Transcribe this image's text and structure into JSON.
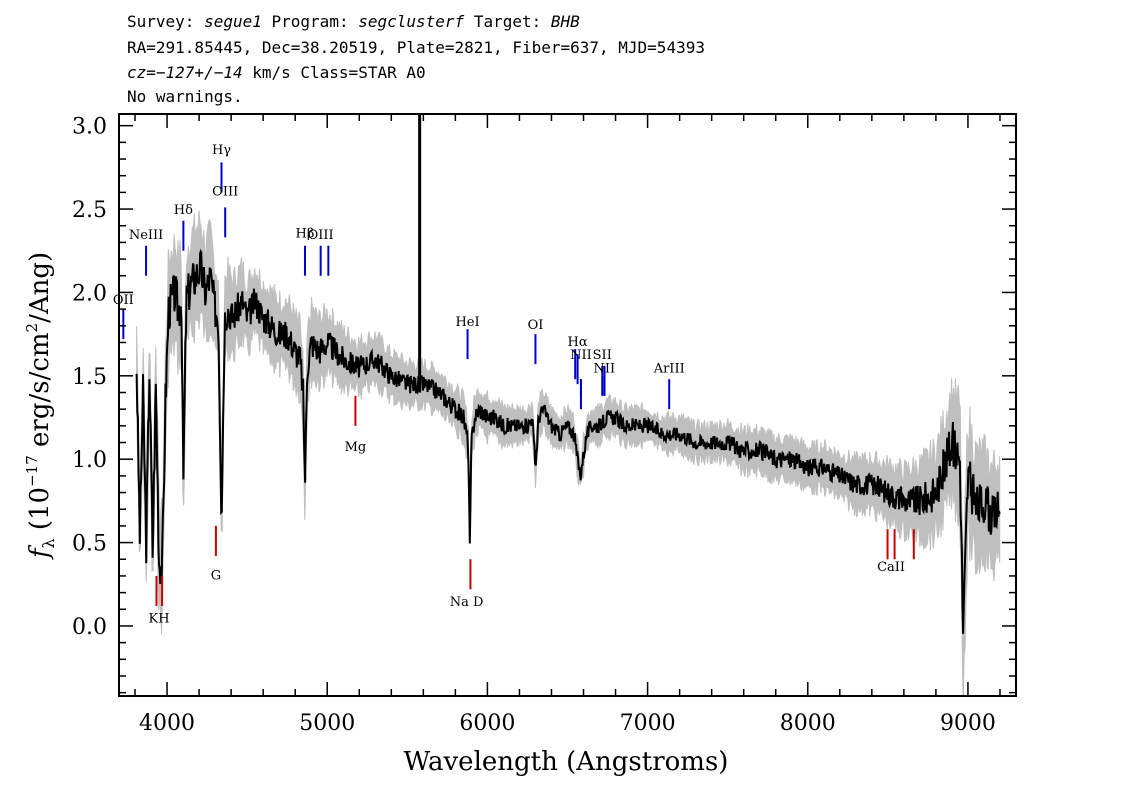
{
  "header": {
    "line1": {
      "survey_label": "Survey:",
      "survey": "segue1",
      "program_label": "Program:",
      "program": "segclusterf",
      "target_label": "Target:",
      "target": "BHB"
    },
    "line2": "RA=291.85445, Dec=38.20519, Plate=2821, Fiber=637, MJD=54393",
    "line3": {
      "cz": "cz=−127+/−14",
      "rest": " km/s Class=STAR A0"
    },
    "line4": "No warnings."
  },
  "chart_data": {
    "type": "line",
    "xlabel": "Wavelength (Angstroms)",
    "ylabel_prefix": "f",
    "ylabel_sub": "λ",
    "ylabel_unit_pre": "(10",
    "ylabel_exp": "−17",
    "ylabel_unit_mid": " erg/s/cm",
    "ylabel_exp2": "2",
    "ylabel_unit_post": "/Ang)",
    "xlim": [
      3700,
      9300
    ],
    "ylim": [
      -0.42,
      3.07
    ],
    "x_ticks": [
      4000,
      5000,
      6000,
      7000,
      8000,
      9000
    ],
    "x_tick_labels": [
      "4000",
      "5000",
      "6000",
      "7000",
      "8000",
      "9000"
    ],
    "x_minor_step": 200,
    "y_ticks": [
      0.0,
      0.5,
      1.0,
      1.5,
      2.0,
      2.5,
      3.0
    ],
    "y_tick_labels": [
      "0.0",
      "0.5",
      "1.0",
      "1.5",
      "2.0",
      "2.5",
      "3.0"
    ],
    "y_minor_step": 0.1,
    "series": [
      {
        "role": "flux",
        "color": "#000000",
        "x": [
          3810,
          3830,
          3850,
          3870,
          3890,
          3910,
          3930,
          3950,
          3970,
          3990,
          4010,
          4030,
          4050,
          4070,
          4090,
          4101,
          4120,
          4150,
          4180,
          4210,
          4240,
          4270,
          4300,
          4320,
          4340,
          4360,
          4380,
          4410,
          4440,
          4470,
          4500,
          4550,
          4600,
          4650,
          4700,
          4750,
          4800,
          4830,
          4850,
          4861,
          4875,
          4900,
          4950,
          5000,
          5100,
          5200,
          5300,
          5400,
          5500,
          5600,
          5700,
          5800,
          5850,
          5880,
          5890,
          5900,
          5920,
          5950,
          6000,
          6050,
          6100,
          6150,
          6200,
          6250,
          6280,
          6300,
          6320,
          6350,
          6400,
          6450,
          6500,
          6540,
          6563,
          6580,
          6620,
          6650,
          6700,
          6750,
          6800,
          6850,
          6900,
          7000,
          7100,
          7200,
          7300,
          7400,
          7500,
          7600,
          7700,
          7800,
          7900,
          8000,
          8100,
          8200,
          8300,
          8400,
          8500,
          8600,
          8700,
          8800,
          8850,
          8900,
          8950,
          8970,
          9000,
          9050,
          9100,
          9150,
          9200
        ],
        "y": [
          1.55,
          0.55,
          1.4,
          0.5,
          1.55,
          0.45,
          1.45,
          0.4,
          0.35,
          1.35,
          1.9,
          1.95,
          2.0,
          1.9,
          1.95,
          0.82,
          1.95,
          2.05,
          2.1,
          2.15,
          2.0,
          2.1,
          1.9,
          1.85,
          0.65,
          1.85,
          1.9,
          1.85,
          1.9,
          1.95,
          1.85,
          1.95,
          1.85,
          1.8,
          1.75,
          1.75,
          1.65,
          1.6,
          1.4,
          0.85,
          1.55,
          1.7,
          1.65,
          1.7,
          1.6,
          1.55,
          1.6,
          1.5,
          1.45,
          1.45,
          1.4,
          1.3,
          1.25,
          1.1,
          0.45,
          1.1,
          1.25,
          1.3,
          1.25,
          1.25,
          1.2,
          1.2,
          1.2,
          1.2,
          1.25,
          0.95,
          1.25,
          1.3,
          1.2,
          1.15,
          1.2,
          1.15,
          1.0,
          0.9,
          1.15,
          1.2,
          1.2,
          1.25,
          1.25,
          1.2,
          1.2,
          1.2,
          1.15,
          1.15,
          1.1,
          1.1,
          1.1,
          1.05,
          1.05,
          1.0,
          1.0,
          0.95,
          0.95,
          0.9,
          0.85,
          0.85,
          0.8,
          0.75,
          0.75,
          0.8,
          0.95,
          1.1,
          1.0,
          -0.05,
          0.9,
          0.7,
          0.75,
          0.65,
          0.7
        ]
      },
      {
        "role": "noise-envelope",
        "color": "#bfbfbf",
        "x": [
          3810,
          3900,
          4000,
          4100,
          4200,
          4300,
          4400,
          4500,
          4600,
          4700,
          4800,
          4900,
          5000,
          5200,
          5400,
          5600,
          5800,
          6000,
          6200,
          6400,
          6600,
          6800,
          7000,
          7200,
          7400,
          7600,
          7800,
          8000,
          8200,
          8400,
          8600,
          8800,
          8900,
          9000,
          9100,
          9200
        ],
        "y": [
          0.25,
          0.3,
          0.3,
          0.3,
          0.28,
          0.25,
          0.22,
          0.2,
          0.2,
          0.2,
          0.2,
          0.2,
          0.18,
          0.15,
          0.13,
          0.12,
          0.12,
          0.12,
          0.1,
          0.1,
          0.1,
          0.1,
          0.1,
          0.1,
          0.1,
          0.12,
          0.12,
          0.12,
          0.13,
          0.15,
          0.18,
          0.25,
          0.3,
          0.35,
          0.3,
          0.3
        ]
      }
    ],
    "spikes": [
      {
        "x": 5577,
        "y_from": 1.4,
        "y_to": 3.07,
        "color": "#000000"
      }
    ],
    "emission_lines": [
      {
        "label": "OII",
        "x": 3727,
        "label_y": 1.93,
        "y1": 1.72,
        "y2": 1.9
      },
      {
        "label": "NeIII",
        "x": 3869,
        "label_y": 2.32,
        "y1": 2.1,
        "y2": 2.28
      },
      {
        "label": "Hδ",
        "x": 4102,
        "label_y": 2.47,
        "y1": 2.25,
        "y2": 2.43
      },
      {
        "label": "Hγ",
        "x": 4340,
        "label_y": 2.83,
        "y1": 2.6,
        "y2": 2.78
      },
      {
        "label": "OIII",
        "x": 4363,
        "label_y": 2.58,
        "y1": 2.33,
        "y2": 2.51
      },
      {
        "label": "Hβ",
        "x": 4861,
        "label_y": 2.33,
        "y1": 2.1,
        "y2": 2.28
      },
      {
        "label": "OIII",
        "x": 4959,
        "label_y": 2.32,
        "y1": 2.1,
        "y2": 2.28
      },
      {
        "label": "OIII",
        "x": 5007,
        "label_y": -1,
        "y1": 2.1,
        "y2": 2.28
      },
      {
        "label": "HeI",
        "x": 5876,
        "label_y": 1.8,
        "y1": 1.6,
        "y2": 1.78
      },
      {
        "label": "OI",
        "x": 6300,
        "label_y": 1.78,
        "y1": 1.57,
        "y2": 1.75
      },
      {
        "label": "NII",
        "x": 6548,
        "label_y": -1,
        "y1": 1.48,
        "y2": 1.66
      },
      {
        "label": "NII",
        "x": 6584,
        "label_y": 1.6,
        "y1": 1.3,
        "y2": 1.48
      },
      {
        "label": "Hα",
        "x": 6563,
        "label_y": 1.68,
        "y1": 1.45,
        "y2": 1.63
      },
      {
        "label": "NII",
        "x": 6584,
        "label_y": -1,
        "y1": 1.38,
        "y2": 1.48
      },
      {
        "label": "SII",
        "x": 6717,
        "label_y": 1.6,
        "y1": 1.38,
        "y2": 1.56
      },
      {
        "label": "SII",
        "x": 6731,
        "label_y": -1,
        "y1": 1.38,
        "y2": 1.56
      },
      {
        "label": "NII",
        "x": 6730,
        "label_y": 1.52,
        "y1": 1.38,
        "y2": 1.5
      },
      {
        "label": "ArIII",
        "x": 7135,
        "label_y": 1.52,
        "y1": 1.3,
        "y2": 1.48
      }
    ],
    "absorption_lines": [
      {
        "label": "",
        "x": 3934,
        "y1": 0.12,
        "y2": 0.3
      },
      {
        "label": "KH",
        "x": 3969,
        "label_x": 3950,
        "label_y": 0.02,
        "y1": 0.12,
        "y2": 0.3
      },
      {
        "label": "G",
        "x": 4305,
        "label_y": 0.28,
        "y1": 0.42,
        "y2": 0.6
      },
      {
        "label": "Mg",
        "x": 5176,
        "label_y": 1.05,
        "y1": 1.2,
        "y2": 1.38
      },
      {
        "label": "Na D",
        "x": 5894,
        "label_x": 5870,
        "label_y": 0.12,
        "y1": 0.22,
        "y2": 0.4
      },
      {
        "label": "",
        "x": 8498,
        "y1": 0.4,
        "y2": 0.58
      },
      {
        "label": "CaII",
        "x": 8542,
        "label_x": 8520,
        "label_y": 0.33,
        "y1": 0.4,
        "y2": 0.58
      },
      {
        "label": "",
        "x": 8662,
        "y1": 0.4,
        "y2": 0.58
      }
    ],
    "emission_color": "#0000cc",
    "absorption_color": "#cc0000"
  }
}
